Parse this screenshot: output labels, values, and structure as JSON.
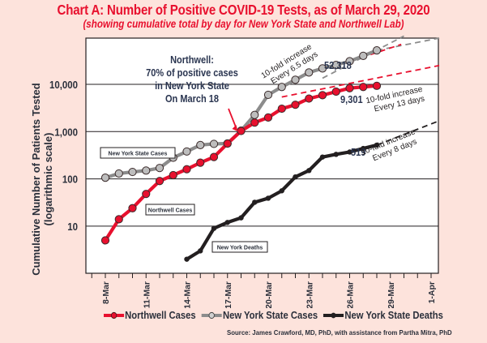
{
  "chart_data": {
    "type": "line",
    "title": "Chart A: Number of Positive COVID-19 Tests, as of March 29, 2020",
    "subtitle": "(showing cumulative total by day for New York State and Northwell Lab)",
    "ylabel_line1": "Cumulative Number of Patients Tested",
    "ylabel_line2": "(logarithmic scale)",
    "yscale": "log",
    "ylim": [
      1,
      100000
    ],
    "yticks": [
      {
        "value": 10,
        "label": "10"
      },
      {
        "value": 100,
        "label": "100"
      },
      {
        "value": 1000,
        "label": "1,000"
      },
      {
        "value": 10000,
        "label": "10,000"
      }
    ],
    "xlim_days": [
      "6-Mar",
      "2-Apr"
    ],
    "xtick_labels": [
      "8-Mar",
      "11-Mar",
      "14-Mar",
      "17-Mar",
      "20-Mar",
      "23-Mar",
      "26-Mar",
      "29-Mar",
      "1-Apr"
    ],
    "xtick_day_offsets": [
      0,
      3,
      6,
      9,
      12,
      15,
      18,
      21,
      24
    ],
    "x_start": "8-Mar",
    "grid": "horizontal",
    "series": [
      {
        "name": "Northwell Cases",
        "color": "#E8102E",
        "marker_fill": "#E8102E",
        "start_day_offset": 0,
        "values": [
          5,
          14,
          24,
          48,
          90,
          120,
          160,
          220,
          290,
          560,
          1030,
          1550,
          1990,
          3050,
          3700,
          5000,
          5900,
          7000,
          8300,
          8800,
          9301
        ],
        "end_label": "9,301",
        "inline_label": "Northwell Cases"
      },
      {
        "name": "New York State Cases",
        "color": "#8c8c8c",
        "marker_fill": "#bdbdbd",
        "start_day_offset": 0,
        "values": [
          106,
          130,
          140,
          150,
          170,
          280,
          380,
          520,
          550,
          560,
          1050,
          2250,
          6000,
          8800,
          12500,
          17800,
          21700,
          25700,
          30800,
          40000,
          52318
        ],
        "end_label": "52,318",
        "inline_label": "New York State Cases"
      },
      {
        "name": "New York State Deaths",
        "color": "#231f20",
        "marker_fill": "#231f20",
        "start_day_offset": 6,
        "values": [
          2,
          3,
          9,
          12,
          15,
          32,
          39,
          56,
          110,
          150,
          290,
          330,
          370,
          440,
          519
        ],
        "end_label": "519",
        "inline_label": "New York Deaths"
      }
    ],
    "trend_lines": [
      {
        "series": "New York State Cases",
        "color": "#8c8c8c",
        "from": [
          16,
          13500
        ],
        "to": [
          22,
          105000
        ],
        "label": [
          "10-fold increase",
          "Every 6.5 days"
        ]
      },
      {
        "series": "New York State Cases",
        "color": "#8c8c8c",
        "from": [
          20,
          52318
        ],
        "to": [
          24.6,
          95000
        ],
        "label": null
      },
      {
        "series": "Northwell Cases",
        "color": "#E8102E",
        "from": [
          17.5,
          27000
        ],
        "to": [
          21.8,
          70000
        ],
        "label": null
      },
      {
        "series": "Northwell Cases",
        "color": "#E8102E",
        "from": [
          13,
          5400
        ],
        "to": [
          24.6,
          25000
        ],
        "label": [
          "10-fold increase",
          "Every 13 days"
        ]
      },
      {
        "series": "New York State Deaths",
        "color": "#231f20",
        "from": [
          20,
          519
        ],
        "to": [
          24.5,
          1650
        ],
        "label": [
          "10-fold increase",
          "Every 8 days"
        ]
      }
    ],
    "annotations": [
      {
        "lines": [
          "Northwell:",
          "70% of positive cases",
          "in New York State",
          "On March 18"
        ],
        "arrow_to_day": 10,
        "arrow_to_value": 800
      }
    ]
  },
  "legend": [
    {
      "label": "Northwell Cases"
    },
    {
      "label": "New York State Cases"
    },
    {
      "label": "New York State Deaths"
    }
  ],
  "source": "Source: James Crawford, MD, PhD, with assistance from Partha Mitra, PhD"
}
